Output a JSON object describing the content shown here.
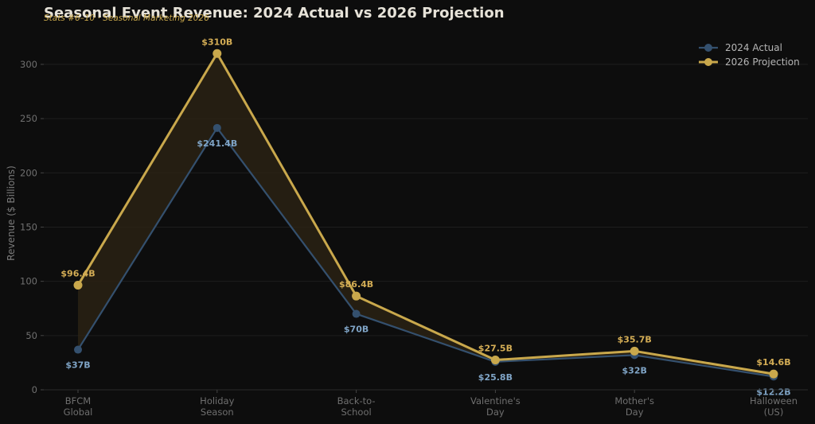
{
  "chart_data": {
    "type": "line",
    "title": "Seasonal Event Revenue: 2024 Actual vs 2026 Projection",
    "subtitle": "Stats #6–10 · Seasonal Marketing 2026",
    "ylabel": "Revenue ($ Billions)",
    "xlabel": "",
    "ylim": [
      0,
      330
    ],
    "yticks": [
      0,
      50,
      100,
      150,
      200,
      250,
      300
    ],
    "grid": true,
    "legend_position": "top-right",
    "categories": [
      [
        "BFCM",
        "Global"
      ],
      [
        "Holiday",
        "Season"
      ],
      [
        "Back-to-",
        "School"
      ],
      [
        "Valentine's",
        "Day"
      ],
      [
        "Mother's",
        "Day"
      ],
      [
        "Halloween",
        "(US)"
      ]
    ],
    "series": [
      {
        "name": "2024 Actual",
        "color": "#34506e",
        "label_color": "#7fa4c6",
        "values": [
          37,
          241.4,
          70,
          25.8,
          32,
          12.2
        ],
        "labels": [
          "$37B",
          "$241.4B",
          "$70B",
          "$25.8B",
          "$32B",
          "$12.2B"
        ]
      },
      {
        "name": "2026 Projection",
        "color": "#c9a84c",
        "label_color": "#d4ad55",
        "values": [
          96.4,
          310,
          86.4,
          27.5,
          35.7,
          14.6
        ],
        "labels": [
          "$96.4B",
          "$310B",
          "$86.4B",
          "$27.5B",
          "$35.7B",
          "$14.6B"
        ]
      }
    ],
    "fill_between_color": "#2a2214"
  }
}
